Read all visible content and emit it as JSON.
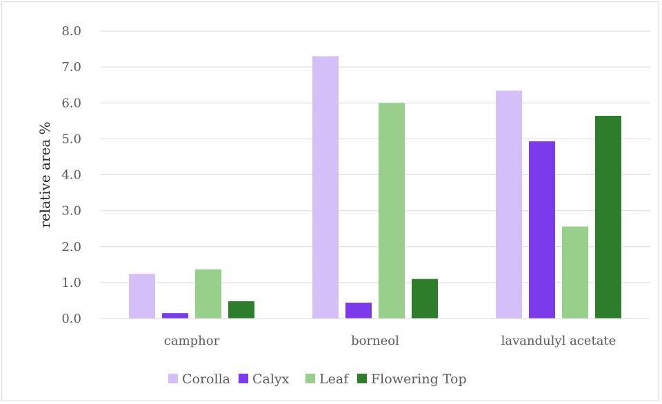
{
  "chart_data": {
    "type": "bar",
    "title": "",
    "xlabel": "",
    "ylabel": "relative area %",
    "ylim": [
      0,
      8
    ],
    "yticks": [
      "0.0",
      "1.0",
      "2.0",
      "3.0",
      "4.0",
      "5.0",
      "6.0",
      "7.0",
      "8.0"
    ],
    "grid": true,
    "legend_position": "bottom",
    "categories": [
      "camphor",
      "borneol",
      "lavandulyl acetate"
    ],
    "series": [
      {
        "name": "Corolla",
        "color": "#d4bff9",
        "values": [
          1.24,
          7.3,
          6.34
        ]
      },
      {
        "name": "Calyx",
        "color": "#7c3aed",
        "values": [
          0.15,
          0.44,
          4.93
        ]
      },
      {
        "name": "Leaf",
        "color": "#98d08b",
        "values": [
          1.37,
          6.0,
          2.56
        ]
      },
      {
        "name": "Flowering Top",
        "color": "#2e7d2a",
        "values": [
          0.48,
          1.1,
          5.64
        ]
      }
    ]
  }
}
